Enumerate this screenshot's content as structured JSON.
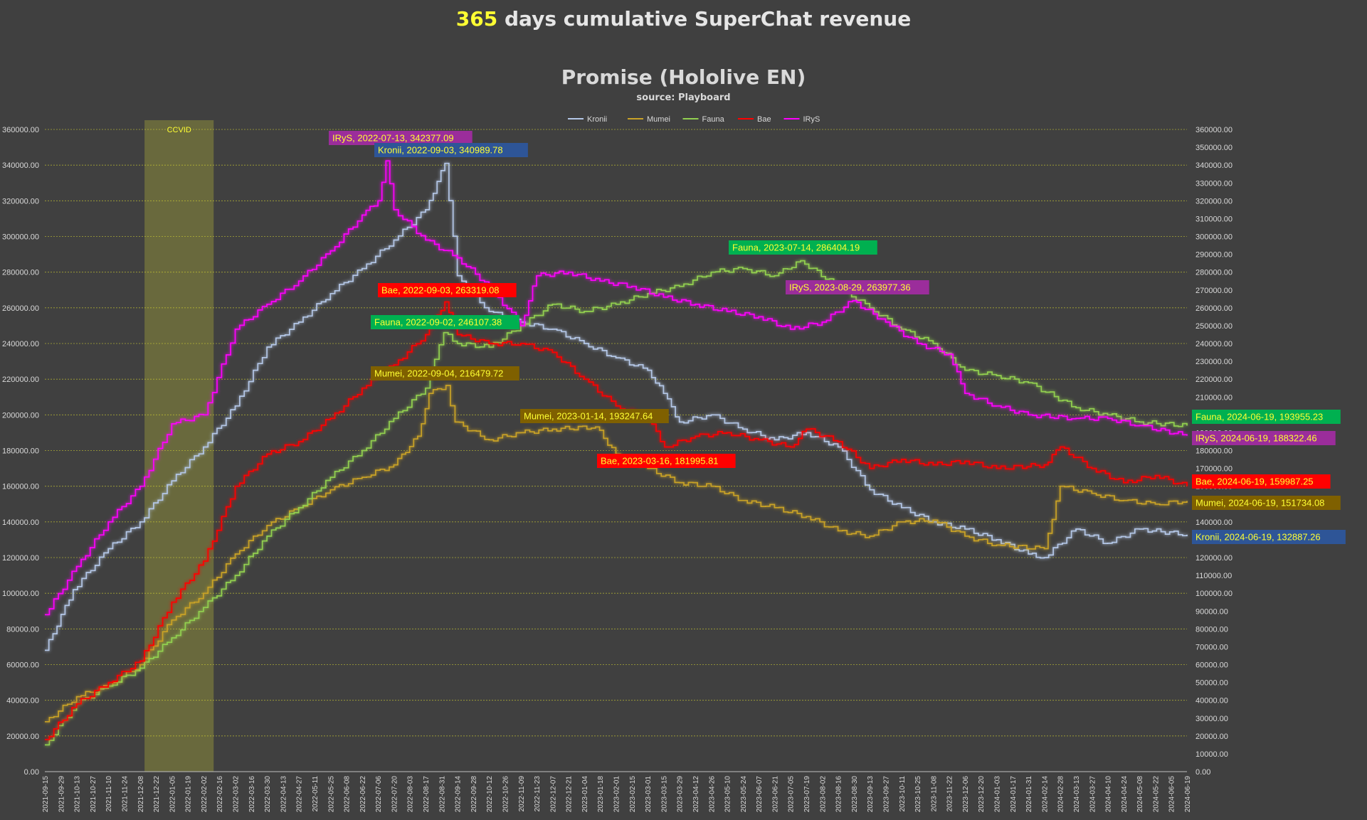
{
  "header": {
    "title_highlight": "365",
    "title_rest": " days cumulative SuperChat revenue"
  },
  "chart_data": {
    "type": "line",
    "title": "Promise (Hololive EN)",
    "subtitle": "source: Playboard",
    "xlabel": "",
    "ylabel": "",
    "ylim": [
      0,
      360000
    ],
    "y_right_ylim": [
      0,
      360000
    ],
    "y_ticks_left": [
      "0.00",
      "20000.00",
      "40000.00",
      "60000.00",
      "80000.00",
      "100000.00",
      "120000.00",
      "140000.00",
      "160000.00",
      "180000.00",
      "200000.00",
      "220000.00",
      "240000.00",
      "260000.00",
      "280000.00",
      "300000.00",
      "320000.00",
      "340000.00",
      "360000.00"
    ],
    "y_ticks_right": [
      "0.00",
      "10000.00",
      "20000.00",
      "30000.00",
      "40000.00",
      "50000.00",
      "60000.00",
      "70000.00",
      "80000.00",
      "90000.00",
      "100000.00",
      "110000.00",
      "120000.00",
      "130000.00",
      "140000.00",
      "150000.00",
      "160000.00",
      "170000.00",
      "180000.00",
      "190000.00",
      "200000.00",
      "210000.00",
      "220000.00",
      "230000.00",
      "240000.00",
      "250000.00",
      "260000.00",
      "270000.00",
      "280000.00",
      "290000.00",
      "300000.00",
      "310000.00",
      "320000.00",
      "330000.00",
      "340000.00",
      "350000.00",
      "360000.00"
    ],
    "x_range": [
      "2021-09-15",
      "2024-06-19"
    ],
    "x_ticks": [
      "2021-09-15",
      "2021-09-29",
      "2021-10-13",
      "2021-10-27",
      "2021-11-10",
      "2021-11-24",
      "2021-12-08",
      "2021-12-22",
      "2022-01-05",
      "2022-01-19",
      "2022-02-02",
      "2022-02-16",
      "2022-03-02",
      "2022-03-16",
      "2022-03-30",
      "2022-04-13",
      "2022-04-27",
      "2022-05-11",
      "2022-05-25",
      "2022-06-08",
      "2022-06-22",
      "2022-07-06",
      "2022-07-20",
      "2022-08-03",
      "2022-08-17",
      "2022-08-31",
      "2022-09-14",
      "2022-09-28",
      "2022-10-12",
      "2022-10-26",
      "2022-11-09",
      "2022-11-23",
      "2022-12-07",
      "2022-12-21",
      "2023-01-04",
      "2023-01-18",
      "2023-02-01",
      "2023-02-15",
      "2023-03-01",
      "2023-03-15",
      "2023-03-29",
      "2023-04-12",
      "2023-04-26",
      "2023-05-10",
      "2023-05-24",
      "2023-06-07",
      "2023-06-21",
      "2023-07-05",
      "2023-07-19",
      "2023-08-02",
      "2023-08-16",
      "2023-08-30",
      "2023-09-13",
      "2023-09-27",
      "2023-10-11",
      "2023-10-25",
      "2023-11-08",
      "2023-11-22",
      "2023-12-06",
      "2023-12-20",
      "2024-01-03",
      "2024-01-17",
      "2024-01-31",
      "2024-02-14",
      "2024-02-28",
      "2024-03-13",
      "2024-03-27",
      "2024-04-10",
      "2024-04-24",
      "2024-05-08",
      "2024-05-22",
      "2024-06-05",
      "2024-06-19"
    ],
    "grid": true,
    "legend_position": "top-center",
    "shaded_region": {
      "label": "CCVID",
      "from": "2021-12-12",
      "to": "2022-02-11",
      "color": "#8a8a3a"
    },
    "series": [
      {
        "name": "Kronii",
        "color": "#b4c7e7",
        "points": [
          [
            "2021-09-15",
            68000
          ],
          [
            "2021-10-10",
            102000
          ],
          [
            "2021-11-10",
            125000
          ],
          [
            "2021-12-08",
            140000
          ],
          [
            "2022-01-05",
            163000
          ],
          [
            "2022-02-02",
            182000
          ],
          [
            "2022-03-02",
            205000
          ],
          [
            "2022-03-30",
            238000
          ],
          [
            "2022-04-27",
            252000
          ],
          [
            "2022-05-25",
            268000
          ],
          [
            "2022-06-22",
            282000
          ],
          [
            "2022-07-20",
            298000
          ],
          [
            "2022-08-17",
            315000
          ],
          [
            "2022-09-03",
            340990
          ],
          [
            "2022-09-14",
            278000
          ],
          [
            "2022-10-12",
            258000
          ],
          [
            "2022-11-09",
            252000
          ],
          [
            "2022-12-07",
            248000
          ],
          [
            "2023-01-04",
            240000
          ],
          [
            "2023-02-01",
            232000
          ],
          [
            "2023-03-01",
            225000
          ],
          [
            "2023-03-15",
            212000
          ],
          [
            "2023-03-29",
            196000
          ],
          [
            "2023-04-26",
            200000
          ],
          [
            "2023-05-24",
            192000
          ],
          [
            "2023-06-21",
            186000
          ],
          [
            "2023-07-19",
            190000
          ],
          [
            "2023-08-16",
            182000
          ],
          [
            "2023-09-13",
            158000
          ],
          [
            "2023-10-11",
            148000
          ],
          [
            "2023-11-08",
            140000
          ],
          [
            "2023-12-06",
            136000
          ],
          [
            "2024-01-03",
            130000
          ],
          [
            "2024-01-31",
            122000
          ],
          [
            "2024-02-14",
            120000
          ],
          [
            "2024-03-13",
            136000
          ],
          [
            "2024-04-10",
            128000
          ],
          [
            "2024-05-08",
            136000
          ],
          [
            "2024-06-19",
            132887
          ]
        ]
      },
      {
        "name": "Mumei",
        "color": "#c9a227",
        "points": [
          [
            "2021-09-15",
            28000
          ],
          [
            "2021-10-13",
            42000
          ],
          [
            "2021-11-10",
            48000
          ],
          [
            "2021-12-08",
            60000
          ],
          [
            "2022-01-05",
            85000
          ],
          [
            "2022-02-02",
            100000
          ],
          [
            "2022-03-02",
            122000
          ],
          [
            "2022-03-30",
            138000
          ],
          [
            "2022-04-27",
            148000
          ],
          [
            "2022-05-25",
            158000
          ],
          [
            "2022-06-22",
            165000
          ],
          [
            "2022-07-20",
            172000
          ],
          [
            "2022-08-10",
            188000
          ],
          [
            "2022-08-20",
            212000
          ],
          [
            "2022-09-04",
            216480
          ],
          [
            "2022-09-12",
            196000
          ],
          [
            "2022-10-12",
            186000
          ],
          [
            "2022-11-09",
            190000
          ],
          [
            "2022-12-07",
            192000
          ],
          [
            "2023-01-14",
            193248
          ],
          [
            "2023-02-01",
            178000
          ],
          [
            "2023-03-01",
            170000
          ],
          [
            "2023-03-29",
            162000
          ],
          [
            "2023-04-26",
            160000
          ],
          [
            "2023-05-24",
            152000
          ],
          [
            "2023-06-21",
            148000
          ],
          [
            "2023-07-19",
            143000
          ],
          [
            "2023-08-16",
            135000
          ],
          [
            "2023-09-13",
            132000
          ],
          [
            "2023-10-11",
            140000
          ],
          [
            "2023-11-08",
            141000
          ],
          [
            "2023-12-06",
            132000
          ],
          [
            "2024-01-03",
            127000
          ],
          [
            "2024-02-14",
            125000
          ],
          [
            "2024-02-28",
            160000
          ],
          [
            "2024-03-27",
            156000
          ],
          [
            "2024-04-24",
            152000
          ],
          [
            "2024-05-22",
            150000
          ],
          [
            "2024-06-19",
            151734
          ]
        ]
      },
      {
        "name": "Fauna",
        "color": "#92d050",
        "points": [
          [
            "2021-09-15",
            15000
          ],
          [
            "2021-10-13",
            38000
          ],
          [
            "2021-11-10",
            48000
          ],
          [
            "2021-12-08",
            58000
          ],
          [
            "2022-01-05",
            75000
          ],
          [
            "2022-02-02",
            92000
          ],
          [
            "2022-03-02",
            110000
          ],
          [
            "2022-03-30",
            132000
          ],
          [
            "2022-04-27",
            148000
          ],
          [
            "2022-05-25",
            165000
          ],
          [
            "2022-06-22",
            180000
          ],
          [
            "2022-07-20",
            198000
          ],
          [
            "2022-08-17",
            215000
          ],
          [
            "2022-09-02",
            246107
          ],
          [
            "2022-09-14",
            240000
          ],
          [
            "2022-10-12",
            238000
          ],
          [
            "2022-11-09",
            250000
          ],
          [
            "2022-12-07",
            262000
          ],
          [
            "2023-01-04",
            258000
          ],
          [
            "2023-02-01",
            262000
          ],
          [
            "2023-03-01",
            268000
          ],
          [
            "2023-03-29",
            272000
          ],
          [
            "2023-04-26",
            280000
          ],
          [
            "2023-05-24",
            282000
          ],
          [
            "2023-06-21",
            278000
          ],
          [
            "2023-07-14",
            286404
          ],
          [
            "2023-08-16",
            272000
          ],
          [
            "2023-09-13",
            260000
          ],
          [
            "2023-10-11",
            248000
          ],
          [
            "2023-11-08",
            240000
          ],
          [
            "2023-12-06",
            225000
          ],
          [
            "2024-01-03",
            222000
          ],
          [
            "2024-01-31",
            218000
          ],
          [
            "2024-03-13",
            204000
          ],
          [
            "2024-04-10",
            200000
          ],
          [
            "2024-05-08",
            196000
          ],
          [
            "2024-06-19",
            193955
          ]
        ]
      },
      {
        "name": "Bae",
        "color": "#ff0000",
        "points": [
          [
            "2021-09-15",
            18000
          ],
          [
            "2021-10-13",
            38000
          ],
          [
            "2021-11-10",
            50000
          ],
          [
            "2021-12-08",
            62000
          ],
          [
            "2022-01-05",
            95000
          ],
          [
            "2022-02-02",
            118000
          ],
          [
            "2022-03-02",
            160000
          ],
          [
            "2022-03-30",
            178000
          ],
          [
            "2022-04-27",
            185000
          ],
          [
            "2022-05-25",
            198000
          ],
          [
            "2022-06-22",
            215000
          ],
          [
            "2022-07-20",
            228000
          ],
          [
            "2022-08-17",
            245000
          ],
          [
            "2022-09-03",
            263319
          ],
          [
            "2022-09-14",
            245000
          ],
          [
            "2022-10-12",
            240000
          ],
          [
            "2022-11-09",
            240000
          ],
          [
            "2022-12-07",
            235000
          ],
          [
            "2023-01-04",
            220000
          ],
          [
            "2023-02-01",
            205000
          ],
          [
            "2023-03-01",
            198000
          ],
          [
            "2023-03-16",
            181996
          ],
          [
            "2023-04-12",
            188000
          ],
          [
            "2023-05-10",
            190000
          ],
          [
            "2023-06-07",
            186000
          ],
          [
            "2023-07-05",
            182000
          ],
          [
            "2023-07-19",
            192000
          ],
          [
            "2023-08-16",
            185000
          ],
          [
            "2023-09-13",
            170000
          ],
          [
            "2023-10-11",
            175000
          ],
          [
            "2023-11-08",
            172000
          ],
          [
            "2023-12-06",
            174000
          ],
          [
            "2024-01-03",
            170000
          ],
          [
            "2024-02-14",
            172000
          ],
          [
            "2024-02-28",
            182000
          ],
          [
            "2024-03-27",
            170000
          ],
          [
            "2024-04-24",
            162000
          ],
          [
            "2024-05-22",
            166000
          ],
          [
            "2024-06-19",
            159987
          ]
        ]
      },
      {
        "name": "IRyS",
        "color": "#ff00ff",
        "points": [
          [
            "2021-09-15",
            88000
          ],
          [
            "2021-10-13",
            115000
          ],
          [
            "2021-11-10",
            140000
          ],
          [
            "2021-12-08",
            160000
          ],
          [
            "2022-01-05",
            195000
          ],
          [
            "2022-02-02",
            200000
          ],
          [
            "2022-03-02",
            248000
          ],
          [
            "2022-03-30",
            262000
          ],
          [
            "2022-04-27",
            275000
          ],
          [
            "2022-05-25",
            292000
          ],
          [
            "2022-06-22",
            312000
          ],
          [
            "2022-07-06",
            320000
          ],
          [
            "2022-07-13",
            342377
          ],
          [
            "2022-07-20",
            315000
          ],
          [
            "2022-08-17",
            298000
          ],
          [
            "2022-09-14",
            288000
          ],
          [
            "2022-10-12",
            272000
          ],
          [
            "2022-11-09",
            250000
          ],
          [
            "2022-11-23",
            278000
          ],
          [
            "2022-12-21",
            280000
          ],
          [
            "2023-01-18",
            275000
          ],
          [
            "2023-02-15",
            272000
          ],
          [
            "2023-03-15",
            266000
          ],
          [
            "2023-04-12",
            262000
          ],
          [
            "2023-05-10",
            258000
          ],
          [
            "2023-06-07",
            255000
          ],
          [
            "2023-07-05",
            248000
          ],
          [
            "2023-08-02",
            252000
          ],
          [
            "2023-08-29",
            263977
          ],
          [
            "2023-09-27",
            252000
          ],
          [
            "2023-10-25",
            240000
          ],
          [
            "2023-11-22",
            234000
          ],
          [
            "2023-12-06",
            212000
          ],
          [
            "2024-01-03",
            205000
          ],
          [
            "2024-01-31",
            200000
          ],
          [
            "2024-03-13",
            198000
          ],
          [
            "2024-04-10",
            198000
          ],
          [
            "2024-05-08",
            194000
          ],
          [
            "2024-06-19",
            188322
          ]
        ]
      }
    ],
    "annotations": [
      {
        "text": "IRyS, 2022-07-13, 342377.09",
        "series": "IRyS",
        "bg": "#9b2d9b",
        "fg": "#ffff33"
      },
      {
        "text": "Kronii, 2022-09-03, 340989.78",
        "series": "Kronii",
        "bg": "#2e5597",
        "fg": "#ffff33"
      },
      {
        "text": "Fauna, 2023-07-14, 286404.19",
        "series": "Fauna",
        "bg": "#00b050",
        "fg": "#ffff33"
      },
      {
        "text": "IRyS, 2023-08-29, 263977.36",
        "series": "IRyS",
        "bg": "#9b2d9b",
        "fg": "#ffff33"
      },
      {
        "text": "Bae, 2022-09-03, 263319.08",
        "series": "Bae",
        "bg": "#ff0000",
        "fg": "#ffff33"
      },
      {
        "text": "Fauna, 2022-09-02, 246107.38",
        "series": "Fauna",
        "bg": "#00b050",
        "fg": "#ffff33"
      },
      {
        "text": "Mumei, 2022-09-04, 216479.72",
        "series": "Mumei",
        "bg": "#7f6000",
        "fg": "#ffff33"
      },
      {
        "text": "Mumei, 2023-01-14, 193247.64",
        "series": "Mumei",
        "bg": "#7f6000",
        "fg": "#ffff33"
      },
      {
        "text": "Bae, 2023-03-16, 181995.81",
        "series": "Bae",
        "bg": "#ff0000",
        "fg": "#ffff33"
      },
      {
        "text": "Fauna, 2024-06-19, 193955.23",
        "series": "Fauna",
        "bg": "#00b050",
        "fg": "#ffff33"
      },
      {
        "text": "IRyS, 2024-06-19, 188322.46",
        "series": "IRyS",
        "bg": "#9b2d9b",
        "fg": "#ffff33"
      },
      {
        "text": "Bae, 2024-06-19, 159987.25",
        "series": "Bae",
        "bg": "#ff0000",
        "fg": "#ffff33"
      },
      {
        "text": "Mumei, 2024-06-19, 151734.08",
        "series": "Mumei",
        "bg": "#7f6000",
        "fg": "#ffff33"
      },
      {
        "text": "Kronii, 2024-06-19, 132887.26",
        "series": "Kronii",
        "bg": "#2e5597",
        "fg": "#ffff33"
      }
    ]
  }
}
